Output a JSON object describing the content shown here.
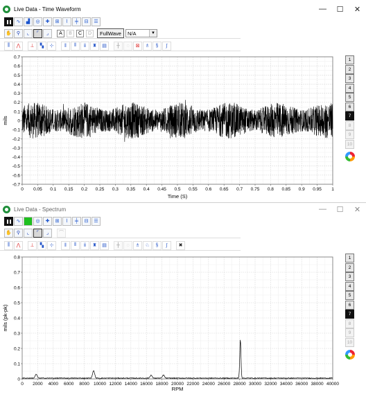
{
  "windows": {
    "time": {
      "title": "Live Data - Time Waveform",
      "toolbar_letters": [
        "A",
        "B",
        "C",
        "D"
      ],
      "fullwave_label": "FullWave",
      "select_value": "N/A"
    },
    "spectrum": {
      "title": "Live Data - Spectrum"
    }
  },
  "window_controls": {
    "minimize": "—",
    "maximize": "☐",
    "close": "✕"
  },
  "channels": [
    "1",
    "2",
    "3",
    "4",
    "5",
    "6",
    "7",
    "8",
    "9",
    "10"
  ],
  "chart_data": [
    {
      "type": "line",
      "xlabel": "Time (S)",
      "ylabel": "mils",
      "xlim": [
        0,
        1
      ],
      "ylim": [
        -0.7,
        0.7
      ],
      "x_ticks": [
        "0",
        "0.05",
        "0.1",
        "0.15",
        "0.2",
        "0.25",
        "0.3",
        "0.35",
        "0.4",
        "0.45",
        "0.5",
        "0.55",
        "0.6",
        "0.65",
        "0.7",
        "0.75",
        "0.8",
        "0.85",
        "0.9",
        "0.95",
        "1"
      ],
      "y_ticks": [
        "0.7",
        "0.6",
        "0.5",
        "0.4",
        "0.3",
        "0.2",
        "0.1",
        "0",
        "-0.1",
        "-0.2",
        "-0.3",
        "-0.4",
        "-0.5",
        "-0.6",
        "-0.7"
      ],
      "series": [
        {
          "description": "dense random vibration waveform",
          "approx_amplitude": 0.2
        }
      ],
      "grid": true,
      "line_color": "#000000"
    },
    {
      "type": "line",
      "xlabel": "RPM",
      "ylabel": "mils  (pk-pk)",
      "xlim": [
        0,
        40000
      ],
      "ylim": [
        0,
        0.8
      ],
      "x_ticks": [
        "0",
        "2000",
        "4000",
        "6000",
        "8000",
        "10000",
        "12000",
        "14000",
        "16000",
        "18000",
        "20000",
        "22000",
        "24000",
        "26000",
        "28000",
        "30000",
        "32000",
        "34000",
        "36000",
        "38000",
        "40000"
      ],
      "y_ticks": [
        "0.8",
        "0.7",
        "0.6",
        "0.5",
        "0.4",
        "0.3",
        "0.2",
        "0.1",
        "0"
      ],
      "peaks": [
        {
          "x": 1800,
          "y": 0.025
        },
        {
          "x": 9200,
          "y": 0.05
        },
        {
          "x": 16600,
          "y": 0.02
        },
        {
          "x": 18200,
          "y": 0.02
        },
        {
          "x": 28100,
          "y": 0.255
        }
      ],
      "noise_floor": 0.005,
      "grid": true,
      "line_color": "#000000"
    }
  ]
}
